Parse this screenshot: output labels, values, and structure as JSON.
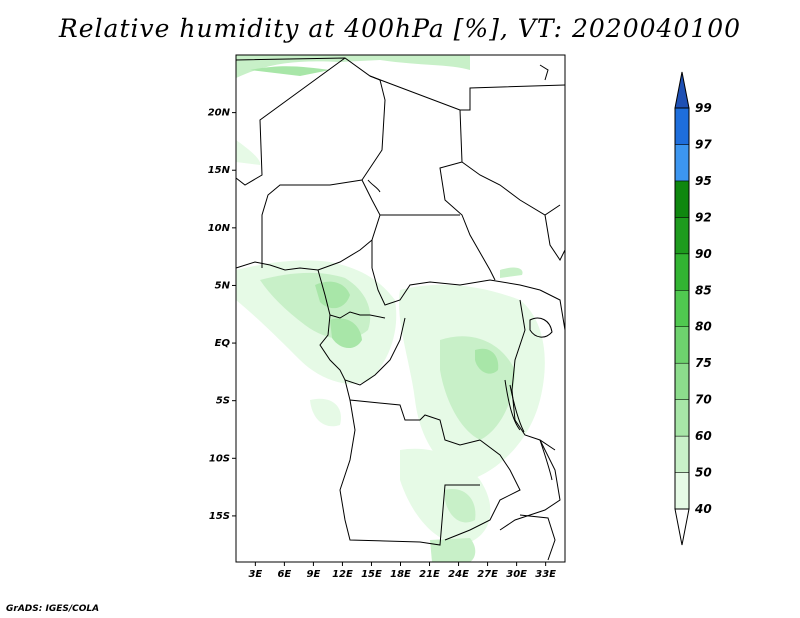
{
  "title": "Relative humidity at 400hPa [%], VT: 2020040100",
  "credit": "GrADS: IGES/COLA",
  "map": {
    "lat_range": [
      -19,
      25
    ],
    "lon_range": [
      1,
      35
    ],
    "lat_labels": [
      "20N",
      "15N",
      "10N",
      "5N",
      "EQ",
      "5S",
      "10S",
      "15S"
    ],
    "lon_labels": [
      "3E",
      "6E",
      "9E",
      "12E",
      "15E",
      "18E",
      "21E",
      "24E",
      "27E",
      "30E",
      "33E"
    ]
  },
  "colorbar": {
    "levels": [
      "40",
      "50",
      "60",
      "70",
      "75",
      "80",
      "85",
      "90",
      "92",
      "95",
      "97",
      "99"
    ],
    "colors": [
      "#ffffff",
      "#e6fae6",
      "#c8f0c8",
      "#a8e6a8",
      "#8cdc8c",
      "#6ed26e",
      "#50c850",
      "#32b432",
      "#1e9b1e",
      "#0f870f",
      "#3c96f0",
      "#1e6edc",
      "#1e50b4"
    ]
  }
}
